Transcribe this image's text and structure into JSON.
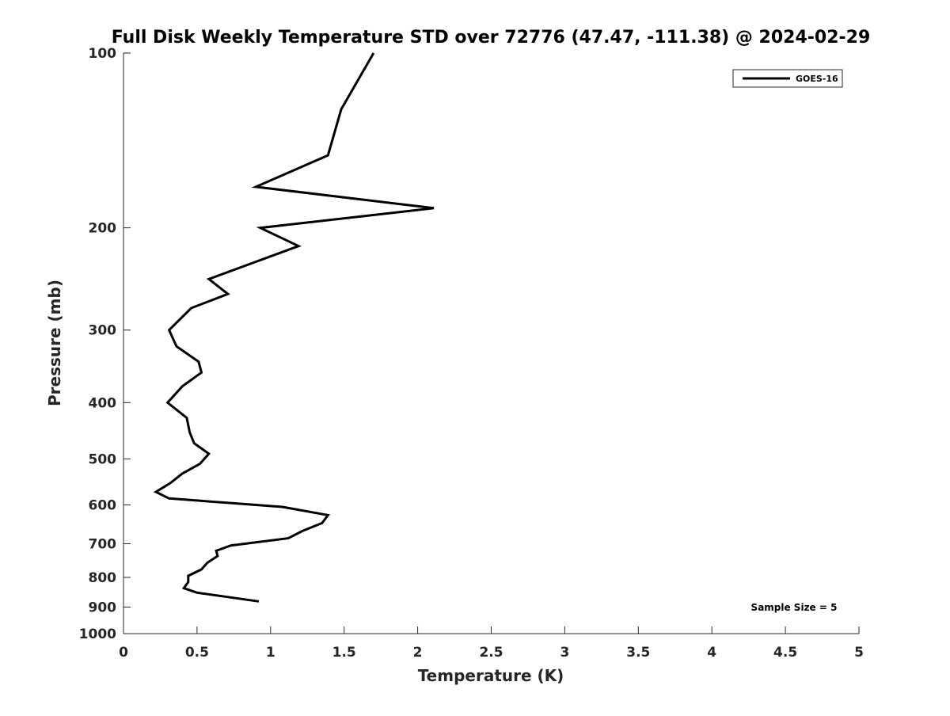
{
  "chart_data": {
    "type": "line",
    "title": "Full Disk Weekly Temperature STD over 72776 (47.47, -111.38) @ 2024-02-29",
    "xlabel": "Temperature (K)",
    "ylabel": "Pressure (mb)",
    "xlim": [
      0,
      5
    ],
    "ylim": [
      100,
      1000
    ],
    "yscale": "log",
    "yreversed": true,
    "grid": false,
    "legend_placement": "top-right",
    "x_ticks": [
      0,
      0.5,
      1,
      1.5,
      2,
      2.5,
      3,
      3.5,
      4,
      4.5,
      5
    ],
    "x_tick_labels": [
      "0",
      "0.5",
      "1",
      "1.5",
      "2",
      "2.5",
      "3",
      "3.5",
      "4",
      "4.5",
      "5"
    ],
    "y_ticks": [
      100,
      200,
      300,
      400,
      500,
      600,
      700,
      800,
      900,
      1000
    ],
    "y_tick_labels": [
      "100",
      "200",
      "300",
      "400",
      "500",
      "600",
      "700",
      "800",
      "900",
      "1000"
    ],
    "series": [
      {
        "name": "GOES-16",
        "color": "#000000",
        "points": [
          {
            "x": 1.7,
            "p": 100
          },
          {
            "x": 1.48,
            "p": 125
          },
          {
            "x": 1.39,
            "p": 150
          },
          {
            "x": 0.9,
            "p": 170
          },
          {
            "x": 2.11,
            "p": 185
          },
          {
            "x": 0.93,
            "p": 200
          },
          {
            "x": 1.19,
            "p": 215
          },
          {
            "x": 0.58,
            "p": 245
          },
          {
            "x": 0.71,
            "p": 260
          },
          {
            "x": 0.46,
            "p": 275
          },
          {
            "x": 0.31,
            "p": 300
          },
          {
            "x": 0.36,
            "p": 320
          },
          {
            "x": 0.51,
            "p": 340
          },
          {
            "x": 0.53,
            "p": 355
          },
          {
            "x": 0.4,
            "p": 375
          },
          {
            "x": 0.3,
            "p": 400
          },
          {
            "x": 0.43,
            "p": 425
          },
          {
            "x": 0.45,
            "p": 450
          },
          {
            "x": 0.48,
            "p": 470
          },
          {
            "x": 0.58,
            "p": 490
          },
          {
            "x": 0.52,
            "p": 510
          },
          {
            "x": 0.4,
            "p": 530
          },
          {
            "x": 0.32,
            "p": 550
          },
          {
            "x": 0.22,
            "p": 570
          },
          {
            "x": 0.31,
            "p": 585
          },
          {
            "x": 1.08,
            "p": 605
          },
          {
            "x": 1.39,
            "p": 625
          },
          {
            "x": 1.35,
            "p": 645
          },
          {
            "x": 1.22,
            "p": 665
          },
          {
            "x": 1.12,
            "p": 685
          },
          {
            "x": 0.73,
            "p": 705
          },
          {
            "x": 0.63,
            "p": 720
          },
          {
            "x": 0.64,
            "p": 735
          },
          {
            "x": 0.57,
            "p": 755
          },
          {
            "x": 0.53,
            "p": 775
          },
          {
            "x": 0.44,
            "p": 795
          },
          {
            "x": 0.44,
            "p": 815
          },
          {
            "x": 0.41,
            "p": 835
          },
          {
            "x": 0.5,
            "p": 850
          },
          {
            "x": 0.92,
            "p": 880
          }
        ]
      }
    ],
    "annotations": [
      {
        "text": "Sample Size = 5",
        "position": "bottom-right"
      }
    ]
  }
}
